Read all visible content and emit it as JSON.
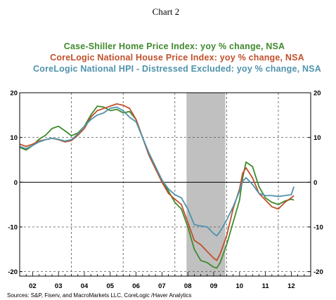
{
  "chart_data": {
    "type": "line",
    "title": "Chart 2",
    "legend_position": "top",
    "source": "Sources:  S&P, Fiserv, and MacroMarkets LLC, CoreLogic /Haver Analytics",
    "ylim": [
      -21,
      20
    ],
    "y_ticks": [
      20,
      10,
      0,
      -10,
      -20
    ],
    "xlim": [
      2001.5,
      2012.75
    ],
    "x_tick_labels": [
      "02",
      "03",
      "04",
      "05",
      "06",
      "07",
      "08",
      "09",
      "10",
      "11",
      "12"
    ],
    "x_tick_centers": [
      2002,
      2003,
      2004,
      2005,
      2006,
      2007,
      2008,
      2009,
      2010,
      2011,
      2012
    ],
    "x_label_color": "#2d5aa0",
    "shaded_region": [
      2007.95,
      2009.45
    ],
    "shaded_color": "#c0c0c0",
    "grid": true,
    "series": [
      {
        "name": "Case-Shiller Home Price Index: yoy % change, NSA",
        "color": "#3f8a2c",
        "points": [
          [
            2001.5,
            7.8
          ],
          [
            2001.75,
            7.2
          ],
          [
            2002,
            8.2
          ],
          [
            2002.25,
            9.6
          ],
          [
            2002.5,
            10.5
          ],
          [
            2002.75,
            12.0
          ],
          [
            2003,
            12.5
          ],
          [
            2003.25,
            11.5
          ],
          [
            2003.5,
            10.4
          ],
          [
            2003.75,
            11.0
          ],
          [
            2004,
            12.5
          ],
          [
            2004.25,
            15.0
          ],
          [
            2004.5,
            17.0
          ],
          [
            2004.75,
            16.8
          ],
          [
            2005,
            16.0
          ],
          [
            2005.25,
            16.3
          ],
          [
            2005.5,
            15.5
          ],
          [
            2005.75,
            15.8
          ],
          [
            2006,
            14.0
          ],
          [
            2006.25,
            10.0
          ],
          [
            2006.5,
            6.0
          ],
          [
            2006.75,
            3.0
          ],
          [
            2007,
            0.5
          ],
          [
            2007.25,
            -2.0
          ],
          [
            2007.5,
            -4.5
          ],
          [
            2007.75,
            -6.0
          ],
          [
            2008,
            -10.0
          ],
          [
            2008.25,
            -15.0
          ],
          [
            2008.5,
            -17.5
          ],
          [
            2008.75,
            -18.0
          ],
          [
            2009,
            -19.0
          ],
          [
            2009.12,
            -19.2
          ],
          [
            2009.25,
            -18.0
          ],
          [
            2009.5,
            -14.0
          ],
          [
            2009.75,
            -9.0
          ],
          [
            2010,
            -4.0
          ],
          [
            2010.12,
            1.0
          ],
          [
            2010.25,
            4.5
          ],
          [
            2010.5,
            3.5
          ],
          [
            2010.75,
            -1.0
          ],
          [
            2011,
            -3.5
          ],
          [
            2011.25,
            -4.5
          ],
          [
            2011.5,
            -5.0
          ],
          [
            2011.75,
            -4.2
          ],
          [
            2012,
            -3.8
          ],
          [
            2012.1,
            -4.0
          ]
        ]
      },
      {
        "name": "CoreLogic National House Price Index: yoy % change, NSA",
        "color": "#c0502b",
        "points": [
          [
            2001.5,
            8.5
          ],
          [
            2001.75,
            8.0
          ],
          [
            2002,
            8.5
          ],
          [
            2002.25,
            9.2
          ],
          [
            2002.5,
            9.5
          ],
          [
            2002.75,
            9.8
          ],
          [
            2003,
            9.5
          ],
          [
            2003.25,
            9.0
          ],
          [
            2003.5,
            9.3
          ],
          [
            2003.75,
            10.5
          ],
          [
            2004,
            12.0
          ],
          [
            2004.25,
            14.5
          ],
          [
            2004.5,
            16.0
          ],
          [
            2004.75,
            16.5
          ],
          [
            2005,
            17.0
          ],
          [
            2005.25,
            17.5
          ],
          [
            2005.5,
            17.2
          ],
          [
            2005.75,
            16.5
          ],
          [
            2006,
            14.0
          ],
          [
            2006.25,
            10.0
          ],
          [
            2006.5,
            6.0
          ],
          [
            2006.75,
            3.0
          ],
          [
            2007,
            0.0
          ],
          [
            2007.25,
            -2.5
          ],
          [
            2007.5,
            -3.8
          ],
          [
            2007.75,
            -5.0
          ],
          [
            2008,
            -9.0
          ],
          [
            2008.25,
            -13.0
          ],
          [
            2008.5,
            -14.0
          ],
          [
            2008.75,
            -15.5
          ],
          [
            2009,
            -17.0
          ],
          [
            2009.12,
            -17.5
          ],
          [
            2009.25,
            -16.0
          ],
          [
            2009.5,
            -12.0
          ],
          [
            2009.75,
            -6.0
          ],
          [
            2010,
            -1.5
          ],
          [
            2010.12,
            2.0
          ],
          [
            2010.25,
            3.2
          ],
          [
            2010.5,
            1.0
          ],
          [
            2010.75,
            -2.5
          ],
          [
            2011,
            -4.0
          ],
          [
            2011.25,
            -5.5
          ],
          [
            2011.5,
            -6.0
          ],
          [
            2011.75,
            -4.5
          ],
          [
            2012,
            -3.5
          ],
          [
            2012.1,
            -3.0
          ]
        ]
      },
      {
        "name": "CoreLogic National HPI - Distressed Excluded: yoy % change, NSA",
        "color": "#4f93ac",
        "points": [
          [
            2001.5,
            8.0
          ],
          [
            2001.75,
            7.5
          ],
          [
            2002,
            8.2
          ],
          [
            2002.25,
            9.0
          ],
          [
            2002.5,
            9.5
          ],
          [
            2002.75,
            9.8
          ],
          [
            2003,
            9.6
          ],
          [
            2003.25,
            9.2
          ],
          [
            2003.5,
            9.5
          ],
          [
            2003.75,
            10.8
          ],
          [
            2004,
            12.5
          ],
          [
            2004.25,
            14.0
          ],
          [
            2004.5,
            15.0
          ],
          [
            2004.75,
            15.5
          ],
          [
            2005,
            16.5
          ],
          [
            2005.25,
            16.8
          ],
          [
            2005.5,
            16.0
          ],
          [
            2005.75,
            14.5
          ],
          [
            2006,
            13.5
          ],
          [
            2006.25,
            10.0
          ],
          [
            2006.5,
            6.5
          ],
          [
            2006.75,
            3.5
          ],
          [
            2007,
            0.5
          ],
          [
            2007.25,
            -1.5
          ],
          [
            2007.5,
            -2.8
          ],
          [
            2007.75,
            -3.5
          ],
          [
            2008,
            -6.0
          ],
          [
            2008.25,
            -9.5
          ],
          [
            2008.5,
            -9.8
          ],
          [
            2008.75,
            -10.0
          ],
          [
            2009,
            -11.5
          ],
          [
            2009.12,
            -12.0
          ],
          [
            2009.25,
            -11.0
          ],
          [
            2009.5,
            -8.5
          ],
          [
            2009.75,
            -5.5
          ],
          [
            2010,
            -2.0
          ],
          [
            2010.12,
            0.2
          ],
          [
            2010.25,
            1.0
          ],
          [
            2010.5,
            -0.5
          ],
          [
            2010.75,
            -2.5
          ],
          [
            2011,
            -3.0
          ],
          [
            2011.25,
            -3.0
          ],
          [
            2011.5,
            -3.2
          ],
          [
            2011.75,
            -3.0
          ],
          [
            2012,
            -2.8
          ],
          [
            2012.1,
            -1.0
          ]
        ]
      }
    ]
  }
}
